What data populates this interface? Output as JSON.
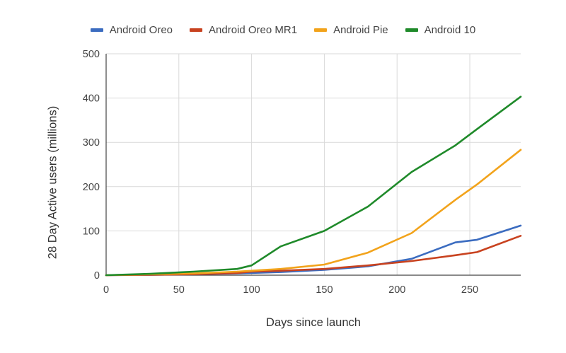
{
  "chart_data": {
    "type": "line",
    "title": "",
    "xlabel": "Days since launch",
    "ylabel": "28 Day Active users (millions)",
    "xlim": [
      0,
      285
    ],
    "ylim": [
      0,
      500
    ],
    "x_ticks": [
      "0",
      "50",
      "100",
      "150",
      "200",
      "250"
    ],
    "y_ticks": [
      "0",
      "100",
      "200",
      "300",
      "400",
      "500"
    ],
    "grid": true,
    "legend_position": "top",
    "series": [
      {
        "name": "Android Oreo",
        "color": "#3b6cc0",
        "points": [
          [
            0,
            0
          ],
          [
            30,
            1
          ],
          [
            60,
            2
          ],
          [
            90,
            4
          ],
          [
            120,
            7
          ],
          [
            150,
            12
          ],
          [
            180,
            20
          ],
          [
            210,
            37
          ],
          [
            240,
            74
          ],
          [
            255,
            80
          ],
          [
            285,
            112
          ]
        ]
      },
      {
        "name": "Android Oreo MR1",
        "color": "#c8421f",
        "points": [
          [
            0,
            0
          ],
          [
            30,
            1
          ],
          [
            60,
            2
          ],
          [
            90,
            5
          ],
          [
            100,
            8
          ],
          [
            120,
            10
          ],
          [
            150,
            14
          ],
          [
            180,
            22
          ],
          [
            210,
            32
          ],
          [
            240,
            45
          ],
          [
            255,
            52
          ],
          [
            285,
            89
          ]
        ]
      },
      {
        "name": "Android Pie",
        "color": "#f2a31b",
        "points": [
          [
            0,
            0
          ],
          [
            30,
            2
          ],
          [
            60,
            4
          ],
          [
            90,
            8
          ],
          [
            100,
            10
          ],
          [
            120,
            14
          ],
          [
            150,
            24
          ],
          [
            180,
            51
          ],
          [
            210,
            95
          ],
          [
            240,
            170
          ],
          [
            255,
            205
          ],
          [
            285,
            283
          ]
        ]
      },
      {
        "name": "Android 10",
        "color": "#1f8a2a",
        "points": [
          [
            0,
            0
          ],
          [
            30,
            3
          ],
          [
            60,
            8
          ],
          [
            90,
            14
          ],
          [
            100,
            22
          ],
          [
            120,
            65
          ],
          [
            150,
            100
          ],
          [
            180,
            155
          ],
          [
            210,
            233
          ],
          [
            240,
            293
          ],
          [
            255,
            330
          ],
          [
            285,
            403
          ]
        ]
      }
    ]
  }
}
